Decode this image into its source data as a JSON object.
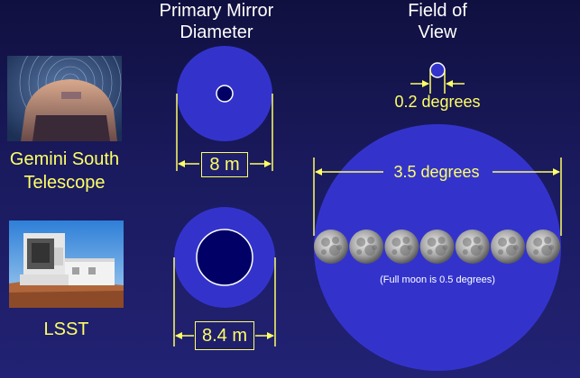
{
  "headers": {
    "mirror": [
      "Primary Mirror",
      "Diameter"
    ],
    "fov": [
      "Field of",
      "View"
    ]
  },
  "telescopes": [
    {
      "name_lines": [
        "Gemini South",
        "Telescope"
      ],
      "mirror_label": "8 m",
      "fov_label": "0.2 degrees",
      "fov_degrees": 0.2,
      "mirror_m": 8
    },
    {
      "name_lines": [
        "LSST"
      ],
      "mirror_label": "8.4 m",
      "fov_label": "3.5 degrees",
      "fov_degrees": 3.5,
      "mirror_m": 8.4
    }
  ],
  "moon_note": "(Full moon is 0.5 degrees)",
  "moon_degrees": 0.5,
  "moon_count": 7,
  "colors": {
    "background_top": "#101040",
    "background_bottom": "#222274",
    "mirror_fill": "#3333cc",
    "mirror_hole": "#000066",
    "annotation": "#ffff66",
    "text": "#ffffff"
  }
}
